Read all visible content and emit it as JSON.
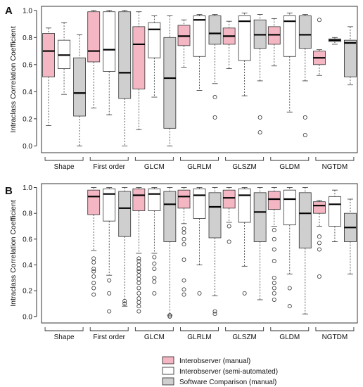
{
  "figure": {
    "panel_labels": [
      "A",
      "B"
    ]
  },
  "legend": [
    {
      "label": "Interobserver (manual)",
      "color": "#f4b6c2"
    },
    {
      "label": "Interobserver (semi-automated)",
      "color": "#ffffff"
    },
    {
      "label": "Software Comparison (manual)",
      "color": "#cfcfcf"
    }
  ],
  "chart_data": [
    {
      "type": "boxplot",
      "panel": "A",
      "ylabel": "Intraclass Correlation Coefficient",
      "ylim": [
        -0.05,
        1.03
      ],
      "yticks": [
        "0.0",
        "0.2",
        "0.4",
        "0.6",
        "0.8",
        "1.0"
      ],
      "grid": false,
      "groups": [
        "Shape",
        "First order",
        "GLCM",
        "GLRLM",
        "GLSZM",
        "GLDM",
        "NGTDM"
      ],
      "series": [
        {
          "name": "Interobserver (manual)",
          "boxes": [
            {
              "wlo": 0.15,
              "q1": 0.51,
              "med": 0.7,
              "q3": 0.83,
              "whi": 0.87,
              "out": []
            },
            {
              "wlo": 0.28,
              "q1": 0.62,
              "med": 0.7,
              "q3": 0.99,
              "whi": 1.0,
              "out": []
            },
            {
              "wlo": 0.12,
              "q1": 0.42,
              "med": 0.75,
              "q3": 0.88,
              "whi": 0.99,
              "out": []
            },
            {
              "wlo": 0.58,
              "q1": 0.74,
              "med": 0.81,
              "q3": 0.89,
              "whi": 0.93,
              "out": []
            },
            {
              "wlo": 0.57,
              "q1": 0.75,
              "med": 0.81,
              "q3": 0.87,
              "whi": 0.92,
              "out": []
            },
            {
              "wlo": 0.59,
              "q1": 0.75,
              "med": 0.82,
              "q3": 0.88,
              "whi": 0.94,
              "out": []
            },
            {
              "wlo": 0.52,
              "q1": 0.6,
              "med": 0.65,
              "q3": 0.7,
              "whi": 0.71,
              "out": [
                0.93
              ]
            }
          ]
        },
        {
          "name": "Interobserver (semi-automated)",
          "boxes": [
            {
              "wlo": 0.38,
              "q1": 0.57,
              "med": 0.67,
              "q3": 0.78,
              "whi": 0.91,
              "out": []
            },
            {
              "wlo": 0.23,
              "q1": 0.55,
              "med": 0.71,
              "q3": 0.99,
              "whi": 1.0,
              "out": []
            },
            {
              "wlo": 0.36,
              "q1": 0.65,
              "med": 0.86,
              "q3": 0.91,
              "whi": 0.96,
              "out": []
            },
            {
              "wlo": 0.41,
              "q1": 0.66,
              "med": 0.93,
              "q3": 0.96,
              "whi": 0.97,
              "out": []
            },
            {
              "wlo": 0.37,
              "q1": 0.63,
              "med": 0.92,
              "q3": 0.96,
              "whi": 0.98,
              "out": []
            },
            {
              "wlo": 0.25,
              "q1": 0.66,
              "med": 0.92,
              "q3": 0.96,
              "whi": 0.98,
              "out": []
            },
            {
              "wlo": 0.75,
              "q1": 0.77,
              "med": 0.78,
              "q3": 0.79,
              "whi": 0.8,
              "out": []
            }
          ]
        },
        {
          "name": "Software Comparison (manual)",
          "boxes": [
            {
              "wlo": 0.0,
              "q1": 0.22,
              "med": 0.39,
              "q3": 0.65,
              "whi": 0.82,
              "out": []
            },
            {
              "wlo": 0.0,
              "q1": 0.35,
              "med": 0.54,
              "q3": 0.99,
              "whi": 1.0,
              "out": []
            },
            {
              "wlo": 0.0,
              "q1": 0.13,
              "med": 0.5,
              "q3": 0.8,
              "whi": 0.96,
              "out": []
            },
            {
              "wlo": 0.46,
              "q1": 0.75,
              "med": 0.83,
              "q3": 0.96,
              "whi": 0.97,
              "out": [
                0.36,
                0.21
              ]
            },
            {
              "wlo": 0.48,
              "q1": 0.72,
              "med": 0.82,
              "q3": 0.93,
              "whi": 0.97,
              "out": [
                0.21,
                0.1
              ]
            },
            {
              "wlo": 0.48,
              "q1": 0.72,
              "med": 0.82,
              "q3": 0.96,
              "whi": 0.97,
              "out": [
                0.21,
                0.08
              ]
            },
            {
              "wlo": 0.45,
              "q1": 0.51,
              "med": 0.76,
              "q3": 0.78,
              "whi": 0.88,
              "out": []
            }
          ]
        }
      ]
    },
    {
      "type": "boxplot",
      "panel": "B",
      "ylabel": "Intraclass Correlation Coefficient",
      "ylim": [
        -0.05,
        1.03
      ],
      "yticks": [
        "0.0",
        "0.2",
        "0.4",
        "0.6",
        "0.8",
        "1.0"
      ],
      "grid": false,
      "groups": [
        "Shape",
        "First order",
        "GLCM",
        "GLRLM",
        "GLSZM",
        "GLDM",
        "NGTDM"
      ],
      "series": [
        {
          "name": "Interobserver (manual)",
          "boxes": [
            null,
            {
              "wlo": 0.51,
              "q1": 0.79,
              "med": 0.93,
              "q3": 0.98,
              "whi": 1.0,
              "out": [
                0.45,
                0.42,
                0.37,
                0.35,
                0.31,
                0.26,
                0.22,
                0.17
              ]
            },
            {
              "wlo": 0.49,
              "q1": 0.82,
              "med": 0.94,
              "q3": 0.99,
              "whi": 1.0,
              "out": [
                0.45,
                0.43,
                0.4,
                0.37,
                0.35,
                0.32,
                0.29,
                0.26,
                0.22,
                0.18,
                0.14,
                0.11,
                0.08,
                0.04
              ]
            },
            {
              "wlo": 0.72,
              "q1": 0.84,
              "med": 0.93,
              "q3": 0.98,
              "whi": 1.0,
              "out": [
                0.68,
                0.65,
                0.6,
                0.56,
                0.44,
                0.28,
                0.21,
                0.17
              ]
            },
            {
              "wlo": 0.73,
              "q1": 0.84,
              "med": 0.92,
              "q3": 0.98,
              "whi": 1.0,
              "out": [
                0.7,
                0.58
              ]
            },
            {
              "wlo": 0.7,
              "q1": 0.83,
              "med": 0.91,
              "q3": 0.97,
              "whi": 1.0,
              "out": [
                0.67,
                0.6,
                0.52,
                0.43,
                0.3,
                0.26,
                0.22,
                0.18,
                0.13
              ]
            },
            {
              "wlo": 0.7,
              "q1": 0.8,
              "med": 0.86,
              "q3": 0.89,
              "whi": 0.9,
              "out": [
                0.62,
                0.57,
                0.52,
                0.31
              ]
            }
          ]
        },
        {
          "name": "Interobserver (semi-automated)",
          "boxes": [
            null,
            {
              "wlo": 0.32,
              "q1": 0.74,
              "med": 0.95,
              "q3": 0.99,
              "whi": 1.0,
              "out": [
                0.28,
                0.18,
                0.04
              ]
            },
            {
              "wlo": 0.49,
              "q1": 0.82,
              "med": 0.95,
              "q3": 0.99,
              "whi": 1.0,
              "out": [
                0.46,
                0.41,
                0.37,
                0.3,
                0.27,
                0.18
              ]
            },
            {
              "wlo": 0.4,
              "q1": 0.76,
              "med": 0.94,
              "q3": 0.99,
              "whi": 1.0,
              "out": [
                0.18
              ]
            },
            {
              "wlo": 0.39,
              "q1": 0.73,
              "med": 0.94,
              "q3": 0.99,
              "whi": 1.0,
              "out": [
                0.18
              ]
            },
            {
              "wlo": 0.33,
              "q1": 0.71,
              "med": 0.91,
              "q3": 0.98,
              "whi": 1.0,
              "out": [
                0.22,
                0.08
              ]
            },
            {
              "wlo": 0.58,
              "q1": 0.7,
              "med": 0.87,
              "q3": 0.93,
              "whi": 0.98,
              "out": []
            }
          ]
        },
        {
          "name": "Software Comparison (manual)",
          "boxes": [
            null,
            {
              "wlo": 0.08,
              "q1": 0.62,
              "med": 0.84,
              "q3": 0.97,
              "whi": 1.0,
              "out": [
                0.12,
                0.1
              ]
            },
            {
              "wlo": 0.01,
              "q1": 0.58,
              "med": 0.87,
              "q3": 0.97,
              "whi": 1.0,
              "out": [
                0.01,
                0.0
              ]
            },
            {
              "wlo": 0.16,
              "q1": 0.61,
              "med": 0.85,
              "q3": 0.96,
              "whi": 1.0,
              "out": [
                0.04,
                0.02
              ]
            },
            {
              "wlo": 0.13,
              "q1": 0.58,
              "med": 0.81,
              "q3": 0.96,
              "whi": 1.0,
              "out": []
            },
            {
              "wlo": 0.02,
              "q1": 0.53,
              "med": 0.8,
              "q3": 0.96,
              "whi": 1.0,
              "out": []
            },
            {
              "wlo": 0.33,
              "q1": 0.58,
              "med": 0.69,
              "q3": 0.8,
              "whi": 0.91,
              "out": []
            }
          ]
        }
      ]
    }
  ]
}
